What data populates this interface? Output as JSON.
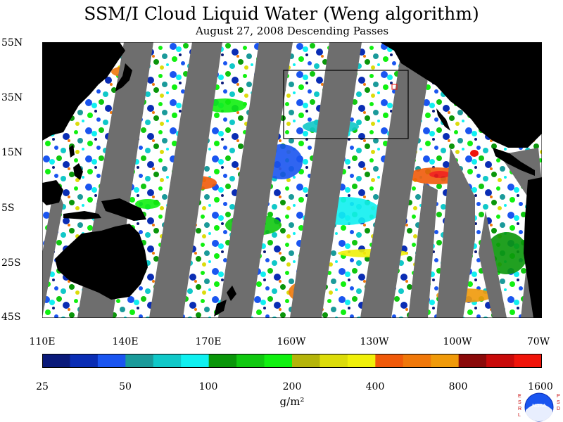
{
  "title": "SSM/I Cloud Liquid Water (Weng algorithm)",
  "subtitle": "August 27, 2008  Descending Passes",
  "lat_labels": [
    "55N",
    "35N",
    "15N",
    "5S",
    "25S",
    "45S"
  ],
  "lon_labels": [
    "110E",
    "140E",
    "170E",
    "160W",
    "130W",
    "100W",
    "70W"
  ],
  "colorbar": {
    "colors": [
      "#0a1a7a",
      "#0a2db4",
      "#1a55f0",
      "#1a9a9a",
      "#10c8c8",
      "#10f0f0",
      "#0a960a",
      "#10c810",
      "#10f010",
      "#b4b40a",
      "#dcdc0a",
      "#f0f00a",
      "#f05a0a",
      "#f0780a",
      "#f09a0a",
      "#8a0a0a",
      "#c80a0a",
      "#f0140a"
    ],
    "tick_labels": [
      "25",
      "50",
      "100",
      "200",
      "400",
      "800",
      "1600"
    ]
  },
  "unit": "g/m²",
  "logo": {
    "name": "NOAA",
    "left_letters": "ESRL",
    "right_letters": "PSD"
  }
}
